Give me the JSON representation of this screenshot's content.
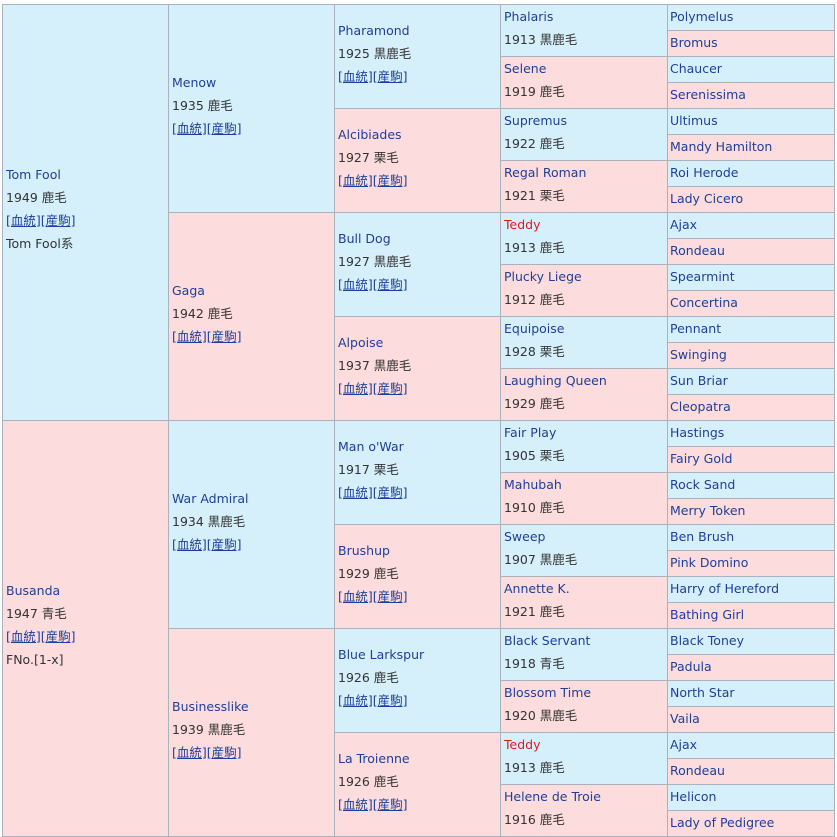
{
  "link_labels": [
    "[血統]",
    "[産駒]"
  ],
  "colors": {
    "male_bg": "#d6f0fb",
    "female_bg": "#fcdcdc",
    "link": "#1e3f9a",
    "highlight_name": "#e01b1b",
    "border": "#a9b2bd"
  },
  "gen1": [
    {
      "name": "Tom Fool",
      "year": "1949",
      "color": "鹿毛",
      "extra": "Tom Fool系"
    },
    {
      "name": "Busanda",
      "year": "1947",
      "color": "青毛",
      "extra": "FNo.[1-x]"
    }
  ],
  "gen2": [
    {
      "name": "Menow",
      "year": "1935",
      "color": "鹿毛"
    },
    {
      "name": "Gaga",
      "year": "1942",
      "color": "鹿毛"
    },
    {
      "name": "War Admiral",
      "year": "1934",
      "color": "黒鹿毛"
    },
    {
      "name": "Businesslike",
      "year": "1939",
      "color": "黒鹿毛"
    }
  ],
  "gen3": [
    {
      "name": "Pharamond",
      "year": "1925",
      "color": "黒鹿毛"
    },
    {
      "name": "Alcibiades",
      "year": "1927",
      "color": "栗毛"
    },
    {
      "name": "Bull Dog",
      "year": "1927",
      "color": "黒鹿毛"
    },
    {
      "name": "Alpoise",
      "year": "1937",
      "color": "黒鹿毛"
    },
    {
      "name": "Man o'War",
      "year": "1917",
      "color": "栗毛"
    },
    {
      "name": "Brushup",
      "year": "1929",
      "color": "鹿毛"
    },
    {
      "name": "Blue Larkspur",
      "year": "1926",
      "color": "鹿毛"
    },
    {
      "name": "La Troienne",
      "year": "1926",
      "color": "鹿毛"
    }
  ],
  "gen4": [
    {
      "name": "Phalaris",
      "year": "1913",
      "color": "黒鹿毛"
    },
    {
      "name": "Selene",
      "year": "1919",
      "color": "鹿毛"
    },
    {
      "name": "Supremus",
      "year": "1922",
      "color": "鹿毛"
    },
    {
      "name": "Regal Roman",
      "year": "1921",
      "color": "栗毛"
    },
    {
      "name": "Teddy",
      "year": "1913",
      "color": "鹿毛",
      "highlight": true
    },
    {
      "name": "Plucky Liege",
      "year": "1912",
      "color": "鹿毛"
    },
    {
      "name": "Equipoise",
      "year": "1928",
      "color": "栗毛"
    },
    {
      "name": "Laughing Queen",
      "year": "1929",
      "color": "鹿毛"
    },
    {
      "name": "Fair Play",
      "year": "1905",
      "color": "栗毛"
    },
    {
      "name": "Mahubah",
      "year": "1910",
      "color": "鹿毛"
    },
    {
      "name": "Sweep",
      "year": "1907",
      "color": "黒鹿毛"
    },
    {
      "name": "Annette K.",
      "year": "1921",
      "color": "鹿毛"
    },
    {
      "name": "Black Servant",
      "year": "1918",
      "color": "青毛"
    },
    {
      "name": "Blossom Time",
      "year": "1920",
      "color": "黒鹿毛"
    },
    {
      "name": "Teddy",
      "year": "1913",
      "color": "鹿毛",
      "highlight": true
    },
    {
      "name": "Helene de Troie",
      "year": "1916",
      "color": "鹿毛"
    }
  ],
  "gen5": [
    {
      "name": "Polymelus"
    },
    {
      "name": "Bromus"
    },
    {
      "name": "Chaucer"
    },
    {
      "name": "Serenissima"
    },
    {
      "name": "Ultimus"
    },
    {
      "name": "Mandy Hamilton"
    },
    {
      "name": "Roi Herode"
    },
    {
      "name": "Lady Cicero"
    },
    {
      "name": "Ajax"
    },
    {
      "name": "Rondeau"
    },
    {
      "name": "Spearmint"
    },
    {
      "name": "Concertina"
    },
    {
      "name": "Pennant"
    },
    {
      "name": "Swinging"
    },
    {
      "name": "Sun Briar"
    },
    {
      "name": "Cleopatra"
    },
    {
      "name": "Hastings"
    },
    {
      "name": "Fairy Gold"
    },
    {
      "name": "Rock Sand"
    },
    {
      "name": "Merry Token"
    },
    {
      "name": "Ben Brush"
    },
    {
      "name": "Pink Domino"
    },
    {
      "name": "Harry of Hereford"
    },
    {
      "name": "Bathing Girl"
    },
    {
      "name": "Black Toney"
    },
    {
      "name": "Padula"
    },
    {
      "name": "North Star"
    },
    {
      "name": "Vaila"
    },
    {
      "name": "Ajax"
    },
    {
      "name": "Rondeau"
    },
    {
      "name": "Helicon"
    },
    {
      "name": "Lady of Pedigree"
    }
  ]
}
